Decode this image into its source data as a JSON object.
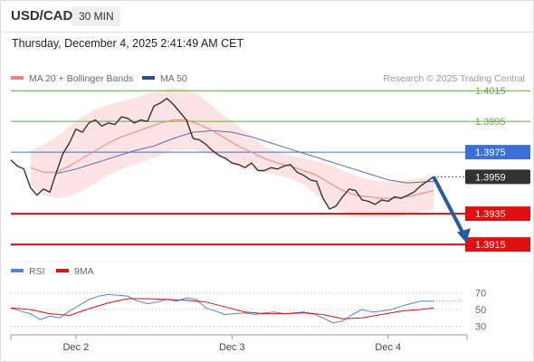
{
  "header": {
    "pair": "USD/CAD",
    "timeframe": "30 MIN",
    "datetime": "Thursday, December 4, 2025 2:41:49 AM CET"
  },
  "colors": {
    "price": "#333333",
    "ma20": "#f08080",
    "bollinger": "#fde0e0",
    "ma50": "#5a6ea8",
    "resistance": "#6aa64a",
    "current_level": "#3d6fd6",
    "support": "#dd1111",
    "current_tag": "#333333",
    "arrow": "#2a5a9c",
    "rsi": "#5b7fd6",
    "rsi_ma": "#dd1111"
  },
  "chart_data": [
    {
      "type": "line",
      "title": "",
      "legend": [
        {
          "name": "MA 20 + Bollinger Bands",
          "color": "#f08080"
        },
        {
          "name": "MA 50",
          "color": "#2f4f8f"
        }
      ],
      "credit": "Research © 2025 Trading Central",
      "x_ticks": [
        {
          "label": "Dec 2",
          "x": 20
        },
        {
          "label": "Dec 3",
          "x": 68
        },
        {
          "label": "Dec 4",
          "x": 116
        }
      ],
      "x_range": [
        0,
        140
      ],
      "ylim": [
        1.3908,
        1.4021
      ],
      "levels": [
        {
          "value": 1.4015,
          "label": "1.4015",
          "kind": "resistance"
        },
        {
          "value": 1.3995,
          "label": "1.3995",
          "kind": "resistance"
        },
        {
          "value": 1.3975,
          "label": "1.3975",
          "kind": "pivot"
        },
        {
          "value": 1.3959,
          "label": "1.3959",
          "kind": "current"
        },
        {
          "value": 1.3935,
          "label": "1.3935",
          "kind": "support"
        },
        {
          "value": 1.3915,
          "label": "1.3915",
          "kind": "support"
        }
      ],
      "forecast_arrow": {
        "from": [
          130,
          1.3959
        ],
        "to": [
          140,
          1.3916
        ]
      },
      "series": [
        {
          "name": "Price",
          "x": [
            0,
            2,
            4,
            6,
            8,
            10,
            12,
            14,
            16,
            18,
            20,
            22,
            24,
            26,
            28,
            30,
            32,
            34,
            36,
            38,
            40,
            42,
            44,
            46,
            48,
            50,
            52,
            54,
            56,
            58,
            60,
            62,
            64,
            66,
            68,
            70,
            72,
            74,
            76,
            78,
            80,
            82,
            84,
            86,
            88,
            90,
            92,
            94,
            96,
            98,
            100,
            102,
            104,
            106,
            108,
            110,
            112,
            114,
            116,
            118,
            120,
            122,
            124,
            126,
            128,
            130
          ],
          "values": [
            1.397,
            1.3966,
            1.3964,
            1.3952,
            1.3947,
            1.3951,
            1.3949,
            1.3962,
            1.3974,
            1.3981,
            1.399,
            1.3988,
            1.3994,
            1.3996,
            1.3992,
            1.3994,
            1.3993,
            1.3998,
            1.3997,
            1.3994,
            1.3996,
            1.3995,
            1.4005,
            1.4007,
            1.401,
            1.4006,
            1.4001,
            1.3996,
            1.3984,
            1.3983,
            1.398,
            1.3976,
            1.3973,
            1.3971,
            1.3968,
            1.3967,
            1.3965,
            1.3968,
            1.3963,
            1.3963,
            1.3965,
            1.3964,
            1.3966,
            1.3967,
            1.3962,
            1.396,
            1.3957,
            1.3956,
            1.3945,
            1.3938,
            1.394,
            1.3946,
            1.3951,
            1.395,
            1.3944,
            1.3943,
            1.3941,
            1.3944,
            1.3943,
            1.3946,
            1.3945,
            1.3947,
            1.3949,
            1.3953,
            1.3956,
            1.3959
          ]
        },
        {
          "name": "MA 20",
          "x": [
            6,
            10,
            14,
            18,
            22,
            26,
            30,
            34,
            38,
            42,
            46,
            50,
            54,
            58,
            62,
            66,
            70,
            74,
            78,
            82,
            86,
            90,
            94,
            98,
            102,
            106,
            110,
            114,
            118,
            122,
            126,
            130
          ],
          "values": [
            1.3965,
            1.3962,
            1.3962,
            1.3966,
            1.3971,
            1.3976,
            1.3981,
            1.3985,
            1.3988,
            1.3991,
            1.3994,
            1.3996,
            1.3996,
            1.3993,
            1.3989,
            1.3984,
            1.3979,
            1.3975,
            1.3971,
            1.3968,
            1.3966,
            1.3963,
            1.396,
            1.3955,
            1.395,
            1.3947,
            1.3946,
            1.3945,
            1.3945,
            1.3946,
            1.3948,
            1.395
          ]
        },
        {
          "name": "Bollinger upper",
          "x": [
            6,
            10,
            14,
            18,
            22,
            26,
            30,
            34,
            38,
            42,
            46,
            50,
            54,
            58,
            62,
            66,
            70,
            74,
            78,
            82,
            86,
            90,
            94,
            98,
            102,
            106,
            110,
            114,
            118,
            122,
            126,
            130
          ],
          "values": [
            1.3976,
            1.398,
            1.3985,
            1.3992,
            1.3998,
            1.4003,
            1.4006,
            1.4008,
            1.401,
            1.4013,
            1.4015,
            1.4017,
            1.4016,
            1.4012,
            1.4005,
            1.3998,
            1.3992,
            1.3985,
            1.3979,
            1.3975,
            1.3973,
            1.3971,
            1.3969,
            1.3967,
            1.3963,
            1.396,
            1.3957,
            1.3956,
            1.3956,
            1.3957,
            1.3958,
            1.396
          ]
        },
        {
          "name": "Bollinger lower",
          "x": [
            6,
            10,
            14,
            18,
            22,
            26,
            30,
            34,
            38,
            42,
            46,
            50,
            54,
            58,
            62,
            66,
            70,
            74,
            78,
            82,
            86,
            90,
            94,
            98,
            102,
            106,
            110,
            114,
            118,
            122,
            126,
            130
          ],
          "values": [
            1.3954,
            1.3947,
            1.3945,
            1.3946,
            1.395,
            1.3955,
            1.396,
            1.3964,
            1.3967,
            1.397,
            1.3973,
            1.3976,
            1.3977,
            1.3976,
            1.3973,
            1.397,
            1.3966,
            1.3964,
            1.3962,
            1.396,
            1.3958,
            1.3954,
            1.3947,
            1.394,
            1.3936,
            1.3933,
            1.3933,
            1.3933,
            1.3933,
            1.3934,
            1.3936,
            1.3938
          ]
        },
        {
          "name": "MA 50",
          "x": [
            14,
            20,
            26,
            32,
            38,
            44,
            50,
            56,
            62,
            68,
            74,
            80,
            86,
            92,
            98,
            104,
            110,
            116,
            122,
            130
          ],
          "values": [
            1.3961,
            1.3964,
            1.3968,
            1.3972,
            1.3976,
            1.3979,
            1.3984,
            1.3988,
            1.3989,
            1.3988,
            1.3985,
            1.3981,
            1.3977,
            1.3973,
            1.3969,
            1.3965,
            1.3961,
            1.3957,
            1.3955,
            1.3956
          ]
        }
      ]
    },
    {
      "type": "line",
      "title": "",
      "legend": [
        {
          "name": "RSI",
          "color": "#5b7fd6"
        },
        {
          "name": "9MA",
          "color": "#dd1111"
        }
      ],
      "ylim": [
        24,
        76
      ],
      "y_ticks": [
        {
          "value": 70,
          "label": "70"
        },
        {
          "value": 50,
          "label": "50"
        },
        {
          "value": 30,
          "label": "30"
        }
      ],
      "series": [
        {
          "name": "RSI",
          "x": [
            0,
            3,
            6,
            9,
            12,
            15,
            18,
            21,
            24,
            27,
            30,
            33,
            36,
            39,
            42,
            45,
            48,
            51,
            54,
            57,
            60,
            63,
            66,
            69,
            72,
            75,
            78,
            81,
            84,
            87,
            90,
            93,
            96,
            99,
            102,
            105,
            108,
            111,
            114,
            117,
            120,
            123,
            126,
            130
          ],
          "values": [
            52,
            48,
            45,
            38,
            42,
            40,
            48,
            55,
            62,
            66,
            68,
            67,
            66,
            60,
            57,
            59,
            62,
            60,
            64,
            62,
            52,
            48,
            44,
            45,
            46,
            44,
            46,
            47,
            45,
            46,
            47,
            45,
            40,
            34,
            36,
            44,
            50,
            47,
            48,
            50,
            54,
            57,
            60,
            60
          ]
        },
        {
          "name": "9MA",
          "x": [
            0,
            6,
            12,
            18,
            24,
            30,
            36,
            42,
            48,
            54,
            60,
            66,
            72,
            78,
            84,
            90,
            96,
            102,
            108,
            114,
            120,
            126,
            130
          ],
          "values": [
            52,
            50,
            45,
            43,
            51,
            58,
            63,
            63,
            62,
            61,
            59,
            53,
            47,
            45,
            45,
            46,
            44,
            39,
            40,
            44,
            48,
            50,
            52
          ]
        }
      ]
    }
  ]
}
